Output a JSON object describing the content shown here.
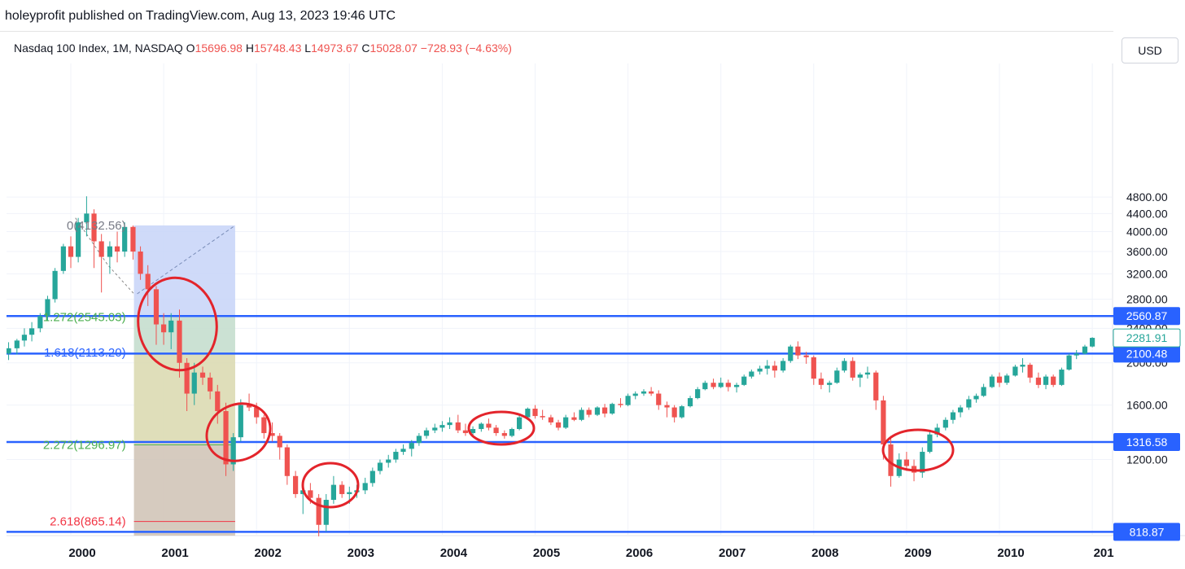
{
  "header": {
    "publisher": "holeyprofit published on TradingView.com, Aug 13, 2023 19:46 UTC"
  },
  "legend": {
    "symbol": "Nasdaq 100 Index, 1M, NASDAQ",
    "open_label": "O",
    "open": "15696.98",
    "high_label": "H",
    "high": "15748.43",
    "low_label": "L",
    "low": "14973.67",
    "close_label": "C",
    "close": "15028.07",
    "change": "−728.93 (−4.63%)"
  },
  "currency_button": "USD",
  "colors": {
    "up": "#26a69a",
    "down": "#ef5350",
    "hline": "#2962ff",
    "fib_green": "#4caf50",
    "fib_blue": "#2962ff",
    "fib_red": "#f23645",
    "box_blue": "#c7d4f8",
    "box_olive": "#d9d8ae",
    "box_brown": "#cfc2b4",
    "annotation": "#e3242b"
  },
  "chart_data": {
    "type": "candlestick",
    "title": "Nasdaq 100 Index, 1M, NASDAQ",
    "x_axis": {
      "labels": [
        "2000",
        "2001",
        "2002",
        "2003",
        "2004",
        "2005",
        "2006",
        "2007",
        "2008",
        "2009",
        "2010",
        "201"
      ]
    },
    "y_axis": {
      "scale": "log",
      "labels": [
        "4800.00",
        "4400.00",
        "4000.00",
        "3600.00",
        "3200.00",
        "2800.00",
        "2400.00",
        "2000.00",
        "1600.00",
        "1200.00"
      ],
      "ylim": [
        700,
        5200
      ]
    },
    "horizontal_levels": [
      "2560.87",
      "2100.48",
      "1316.58",
      "818.87"
    ],
    "last_price_label": "2281.91",
    "fib_levels": [
      {
        "label": "0(4132.56)",
        "price": 4132.56
      },
      {
        "label": "1.272(2545.03)",
        "price": 2545.03
      },
      {
        "label": "1.618(2113.20)",
        "price": 2113.2
      },
      {
        "label": "2.272(1296.97)",
        "price": 1296.97
      },
      {
        "label": "2.618(865.14)",
        "price": 865.14
      }
    ],
    "candles": [
      [
        1999.33,
        2100,
        2230,
        2030,
        2160
      ],
      [
        1999.42,
        2160,
        2270,
        2090,
        2250
      ],
      [
        1999.5,
        2250,
        2400,
        2180,
        2320
      ],
      [
        1999.58,
        2320,
        2480,
        2240,
        2400
      ],
      [
        1999.67,
        2400,
        2600,
        2350,
        2560
      ],
      [
        1999.75,
        2560,
        2850,
        2500,
        2800
      ],
      [
        1999.83,
        2800,
        3300,
        2750,
        3250
      ],
      [
        1999.92,
        3250,
        3750,
        3200,
        3700
      ],
      [
        2000.0,
        3700,
        3900,
        3300,
        3500
      ],
      [
        2000.08,
        3500,
        4300,
        3400,
        4200
      ],
      [
        2000.17,
        4200,
        4820,
        3900,
        4400
      ],
      [
        2000.25,
        4400,
        4500,
        3300,
        3800
      ],
      [
        2000.33,
        3800,
        3950,
        2900,
        3500
      ],
      [
        2000.42,
        3500,
        3800,
        3200,
        3700
      ],
      [
        2000.5,
        3700,
        4000,
        3400,
        3600
      ],
      [
        2000.58,
        3600,
        4200,
        3500,
        4100
      ],
      [
        2000.67,
        4100,
        4130,
        3450,
        3600
      ],
      [
        2000.75,
        3600,
        3700,
        3100,
        3200
      ],
      [
        2000.83,
        3200,
        3350,
        2700,
        2950
      ],
      [
        2000.92,
        2950,
        3000,
        2200,
        2450
      ],
      [
        2001.0,
        2450,
        2600,
        2200,
        2350
      ],
      [
        2001.08,
        2350,
        2600,
        2150,
        2500
      ],
      [
        2001.17,
        2500,
        2650,
        1850,
        2000
      ],
      [
        2001.25,
        2000,
        2050,
        1550,
        1700
      ],
      [
        2001.33,
        1700,
        2000,
        1600,
        1900
      ],
      [
        2001.42,
        1900,
        1960,
        1780,
        1850
      ],
      [
        2001.5,
        1850,
        1900,
        1650,
        1720
      ],
      [
        2001.58,
        1720,
        1780,
        1450,
        1550
      ],
      [
        2001.67,
        1550,
        1620,
        1100,
        1170
      ],
      [
        2001.75,
        1170,
        1380,
        1130,
        1350
      ],
      [
        2001.83,
        1350,
        1650,
        1320,
        1600
      ],
      [
        2001.92,
        1600,
        1700,
        1550,
        1580
      ],
      [
        2002.0,
        1580,
        1620,
        1450,
        1500
      ],
      [
        2002.08,
        1500,
        1520,
        1340,
        1380
      ],
      [
        2002.17,
        1380,
        1460,
        1320,
        1360
      ],
      [
        2002.25,
        1360,
        1380,
        1200,
        1280
      ],
      [
        2002.33,
        1280,
        1300,
        1050,
        1100
      ],
      [
        2002.42,
        1100,
        1130,
        980,
        1000
      ],
      [
        2002.5,
        1000,
        1050,
        900,
        1020
      ],
      [
        2002.58,
        1020,
        1060,
        950,
        980
      ],
      [
        2002.67,
        980,
        1000,
        800,
        850
      ],
      [
        2002.75,
        850,
        1000,
        820,
        970
      ],
      [
        2002.83,
        970,
        1100,
        950,
        1050
      ],
      [
        2002.92,
        1050,
        1070,
        980,
        1000
      ],
      [
        2003.0,
        1000,
        1040,
        950,
        1010
      ],
      [
        2003.08,
        1010,
        1050,
        980,
        1020
      ],
      [
        2003.17,
        1020,
        1090,
        1000,
        1060
      ],
      [
        2003.25,
        1060,
        1150,
        1040,
        1130
      ],
      [
        2003.33,
        1130,
        1200,
        1110,
        1180
      ],
      [
        2003.42,
        1180,
        1230,
        1150,
        1200
      ],
      [
        2003.5,
        1200,
        1270,
        1180,
        1250
      ],
      [
        2003.58,
        1250,
        1300,
        1230,
        1270
      ],
      [
        2003.67,
        1270,
        1330,
        1220,
        1310
      ],
      [
        2003.75,
        1310,
        1380,
        1290,
        1360
      ],
      [
        2003.83,
        1360,
        1420,
        1340,
        1400
      ],
      [
        2003.92,
        1400,
        1450,
        1380,
        1420
      ],
      [
        2004.0,
        1420,
        1470,
        1390,
        1440
      ],
      [
        2004.08,
        1440,
        1500,
        1410,
        1460
      ],
      [
        2004.17,
        1460,
        1520,
        1380,
        1400
      ],
      [
        2004.25,
        1400,
        1450,
        1360,
        1380
      ],
      [
        2004.33,
        1380,
        1430,
        1350,
        1410
      ],
      [
        2004.42,
        1410,
        1460,
        1390,
        1450
      ],
      [
        2004.5,
        1450,
        1490,
        1400,
        1420
      ],
      [
        2004.58,
        1420,
        1440,
        1360,
        1380
      ],
      [
        2004.67,
        1380,
        1400,
        1340,
        1360
      ],
      [
        2004.75,
        1360,
        1420,
        1350,
        1410
      ],
      [
        2004.83,
        1410,
        1520,
        1400,
        1500
      ],
      [
        2004.92,
        1500,
        1580,
        1490,
        1570
      ],
      [
        2005.0,
        1570,
        1600,
        1490,
        1510
      ],
      [
        2005.08,
        1510,
        1560,
        1480,
        1500
      ],
      [
        2005.17,
        1500,
        1520,
        1440,
        1460
      ],
      [
        2005.25,
        1460,
        1480,
        1400,
        1420
      ],
      [
        2005.33,
        1420,
        1520,
        1410,
        1500
      ],
      [
        2005.42,
        1500,
        1540,
        1470,
        1480
      ],
      [
        2005.5,
        1480,
        1580,
        1470,
        1560
      ],
      [
        2005.58,
        1560,
        1580,
        1500,
        1520
      ],
      [
        2005.67,
        1520,
        1590,
        1510,
        1580
      ],
      [
        2005.75,
        1580,
        1610,
        1500,
        1530
      ],
      [
        2005.83,
        1530,
        1620,
        1520,
        1610
      ],
      [
        2005.92,
        1610,
        1660,
        1580,
        1600
      ],
      [
        2006.0,
        1600,
        1700,
        1590,
        1680
      ],
      [
        2006.08,
        1680,
        1720,
        1650,
        1700
      ],
      [
        2006.17,
        1700,
        1740,
        1680,
        1720
      ],
      [
        2006.25,
        1720,
        1760,
        1680,
        1700
      ],
      [
        2006.33,
        1700,
        1730,
        1560,
        1600
      ],
      [
        2006.42,
        1600,
        1630,
        1500,
        1580
      ],
      [
        2006.5,
        1580,
        1600,
        1460,
        1500
      ],
      [
        2006.58,
        1500,
        1600,
        1490,
        1590
      ],
      [
        2006.67,
        1590,
        1680,
        1580,
        1660
      ],
      [
        2006.75,
        1660,
        1760,
        1650,
        1740
      ],
      [
        2006.83,
        1740,
        1820,
        1730,
        1800
      ],
      [
        2006.92,
        1800,
        1840,
        1740,
        1760
      ],
      [
        2007.0,
        1760,
        1850,
        1750,
        1800
      ],
      [
        2007.08,
        1800,
        1830,
        1720,
        1760
      ],
      [
        2007.17,
        1760,
        1800,
        1710,
        1780
      ],
      [
        2007.25,
        1780,
        1880,
        1770,
        1860
      ],
      [
        2007.33,
        1860,
        1930,
        1840,
        1910
      ],
      [
        2007.42,
        1910,
        1970,
        1880,
        1940
      ],
      [
        2007.5,
        1940,
        2030,
        1880,
        1970
      ],
      [
        2007.58,
        1970,
        2020,
        1850,
        1920
      ],
      [
        2007.67,
        1920,
        2050,
        1900,
        2020
      ],
      [
        2007.75,
        2020,
        2200,
        2000,
        2180
      ],
      [
        2007.83,
        2180,
        2240,
        2040,
        2080
      ],
      [
        2007.92,
        2080,
        2120,
        1990,
        2060
      ],
      [
        2008.0,
        2060,
        2080,
        1780,
        1840
      ],
      [
        2008.08,
        1840,
        1900,
        1740,
        1780
      ],
      [
        2008.17,
        1780,
        1820,
        1710,
        1800
      ],
      [
        2008.25,
        1800,
        1950,
        1790,
        1920
      ],
      [
        2008.33,
        1920,
        2050,
        1900,
        2020
      ],
      [
        2008.42,
        2020,
        2060,
        1820,
        1850
      ],
      [
        2008.5,
        1850,
        1900,
        1760,
        1880
      ],
      [
        2008.58,
        1880,
        1960,
        1840,
        1900
      ],
      [
        2008.67,
        1900,
        1920,
        1560,
        1640
      ],
      [
        2008.75,
        1640,
        1680,
        1200,
        1300
      ],
      [
        2008.83,
        1300,
        1360,
        1040,
        1100
      ],
      [
        2008.92,
        1100,
        1240,
        1090,
        1200
      ],
      [
        2009.0,
        1200,
        1250,
        1130,
        1160
      ],
      [
        2009.08,
        1160,
        1200,
        1070,
        1120
      ],
      [
        2009.17,
        1120,
        1280,
        1090,
        1250
      ],
      [
        2009.25,
        1250,
        1400,
        1240,
        1370
      ],
      [
        2009.33,
        1370,
        1450,
        1350,
        1420
      ],
      [
        2009.42,
        1420,
        1500,
        1400,
        1480
      ],
      [
        2009.5,
        1480,
        1560,
        1450,
        1540
      ],
      [
        2009.58,
        1540,
        1600,
        1500,
        1580
      ],
      [
        2009.67,
        1580,
        1680,
        1560,
        1650
      ],
      [
        2009.75,
        1650,
        1700,
        1620,
        1680
      ],
      [
        2009.83,
        1680,
        1790,
        1670,
        1760
      ],
      [
        2009.92,
        1760,
        1880,
        1750,
        1860
      ],
      [
        2010.0,
        1860,
        1900,
        1760,
        1800
      ],
      [
        2010.08,
        1800,
        1890,
        1780,
        1870
      ],
      [
        2010.17,
        1870,
        1980,
        1860,
        1960
      ],
      [
        2010.25,
        1960,
        2050,
        1900,
        1980
      ],
      [
        2010.33,
        1980,
        2000,
        1800,
        1850
      ],
      [
        2010.42,
        1850,
        1900,
        1750,
        1780
      ],
      [
        2010.5,
        1780,
        1880,
        1740,
        1860
      ],
      [
        2010.58,
        1860,
        1880,
        1760,
        1780
      ],
      [
        2010.67,
        1780,
        1950,
        1770,
        1930
      ],
      [
        2010.75,
        1930,
        2100,
        1920,
        2080
      ],
      [
        2010.83,
        2080,
        2140,
        2040,
        2100
      ],
      [
        2010.92,
        2100,
        2200,
        2090,
        2180
      ],
      [
        2011.0,
        2180,
        2290,
        2170,
        2281.91
      ]
    ]
  }
}
